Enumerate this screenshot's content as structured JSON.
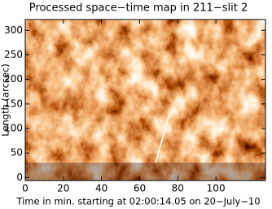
{
  "chart_data": {
    "type": "image",
    "title": "Processed space−time map in 211−slit 2",
    "x_label": "Time in min. starting at 02:00:14.05 on 20−July−10",
    "y_label": "Length (arcsec)",
    "xlim": [
      0,
      126
    ],
    "xticks": [
      0,
      20,
      40,
      60,
      80,
      100
    ],
    "ylim": [
      -6,
      322
    ],
    "yticks": [
      0,
      50,
      100,
      150,
      200,
      250,
      300
    ]
  }
}
